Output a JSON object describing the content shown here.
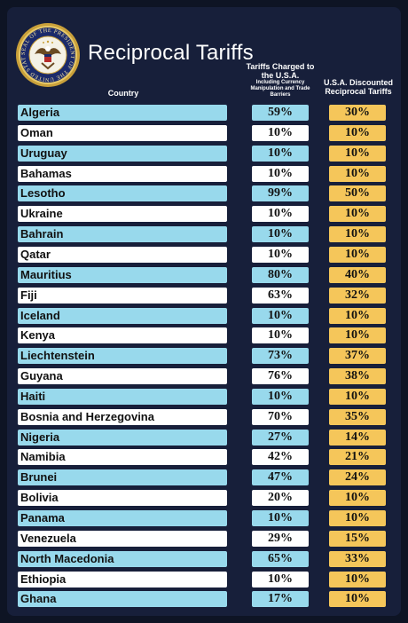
{
  "header": {
    "title": "Reciprocal Tariffs",
    "col_country": "Country",
    "col_charged_main": "Tariffs Charged to the U.S.A.",
    "col_charged_sub": "Including Currency Manipulation and Trade Barriers",
    "col_discounted": "U.S.A. Discounted Reciprocal Tariffs",
    "seal_text": "SEAL OF THE PRESIDENT OF THE UNITED STATES"
  },
  "colors": {
    "background": "#171f3a",
    "blue_row": "#98d9ec",
    "white_row": "#ffffff",
    "discounted": "#f5c65a"
  },
  "rows": [
    {
      "country": "Algeria",
      "charged": "59%",
      "discounted": "30%"
    },
    {
      "country": "Oman",
      "charged": "10%",
      "discounted": "10%"
    },
    {
      "country": "Uruguay",
      "charged": "10%",
      "discounted": "10%"
    },
    {
      "country": "Bahamas",
      "charged": "10%",
      "discounted": "10%"
    },
    {
      "country": "Lesotho",
      "charged": "99%",
      "discounted": "50%"
    },
    {
      "country": "Ukraine",
      "charged": "10%",
      "discounted": "10%"
    },
    {
      "country": "Bahrain",
      "charged": "10%",
      "discounted": "10%"
    },
    {
      "country": "Qatar",
      "charged": "10%",
      "discounted": "10%"
    },
    {
      "country": "Mauritius",
      "charged": "80%",
      "discounted": "40%"
    },
    {
      "country": "Fiji",
      "charged": "63%",
      "discounted": "32%"
    },
    {
      "country": "Iceland",
      "charged": "10%",
      "discounted": "10%"
    },
    {
      "country": "Kenya",
      "charged": "10%",
      "discounted": "10%"
    },
    {
      "country": "Liechtenstein",
      "charged": "73%",
      "discounted": "37%"
    },
    {
      "country": "Guyana",
      "charged": "76%",
      "discounted": "38%"
    },
    {
      "country": "Haiti",
      "charged": "10%",
      "discounted": "10%"
    },
    {
      "country": "Bosnia and Herzegovina",
      "charged": "70%",
      "discounted": "35%"
    },
    {
      "country": "Nigeria",
      "charged": "27%",
      "discounted": "14%"
    },
    {
      "country": "Namibia",
      "charged": "42%",
      "discounted": "21%"
    },
    {
      "country": "Brunei",
      "charged": "47%",
      "discounted": "24%"
    },
    {
      "country": "Bolivia",
      "charged": "20%",
      "discounted": "10%"
    },
    {
      "country": "Panama",
      "charged": "10%",
      "discounted": "10%"
    },
    {
      "country": "Venezuela",
      "charged": "29%",
      "discounted": "15%"
    },
    {
      "country": "North Macedonia",
      "charged": "65%",
      "discounted": "33%"
    },
    {
      "country": "Ethiopia",
      "charged": "10%",
      "discounted": "10%"
    },
    {
      "country": "Ghana",
      "charged": "17%",
      "discounted": "10%"
    }
  ]
}
